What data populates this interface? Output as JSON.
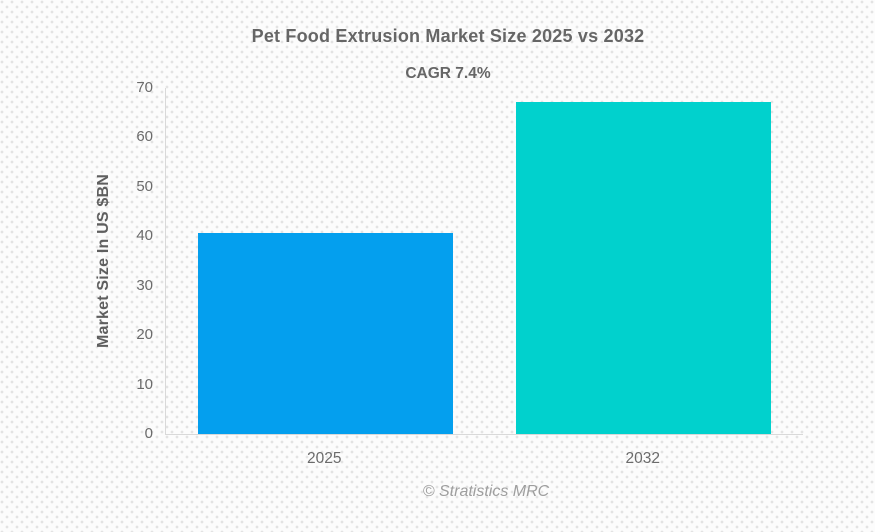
{
  "chart_data": {
    "type": "bar",
    "title": "Pet Food Extrusion Market Size 2025 vs 2032",
    "subtitle": "CAGR 7.4%",
    "categories": [
      "2025",
      "2032"
    ],
    "values": [
      40.7,
      67.1
    ],
    "bar_colors": [
      "#049FEE",
      "#01D1CD"
    ],
    "xlabel": "",
    "ylabel": "Market Size In US $BN",
    "ylim": [
      0,
      70
    ],
    "yticks": [
      0,
      10,
      20,
      30,
      40,
      50,
      60,
      70
    ],
    "grid": false,
    "legend_position": "none"
  },
  "footer": {
    "credit": "© Stratistics MRC"
  },
  "colors": {
    "title_text": "#666666",
    "axis_text": "#6b6b6b",
    "axis_line": "#d9d9d9",
    "footer_text": "#9e9e9e",
    "background": "#fcfcfc",
    "background_dot": "#e3e3e3",
    "bar_2025": "#049FEE",
    "bar_2032": "#01D1CD"
  }
}
